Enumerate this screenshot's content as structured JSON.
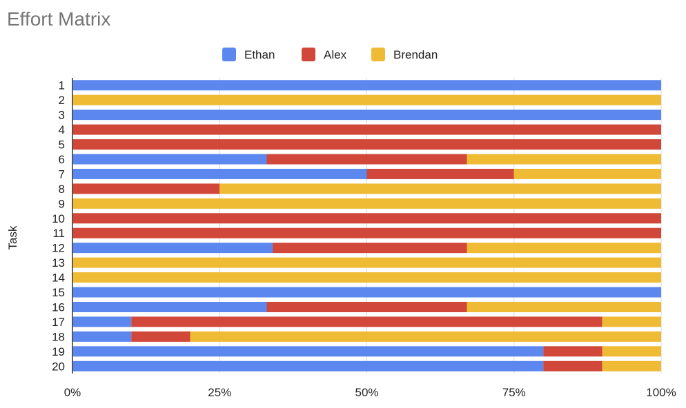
{
  "chart_data": {
    "type": "bar",
    "orientation": "horizontal",
    "stacked": "percent",
    "title": "Effort Matrix",
    "ylabel": "Task",
    "xlabel": "",
    "xlim": [
      0,
      100
    ],
    "xticks": [
      "0%",
      "25%",
      "50%",
      "75%",
      "100%"
    ],
    "categories": [
      "1",
      "2",
      "3",
      "4",
      "5",
      "6",
      "7",
      "8",
      "9",
      "10",
      "11",
      "12",
      "13",
      "14",
      "15",
      "16",
      "17",
      "18",
      "19",
      "20"
    ],
    "legend_position": "top",
    "grid": true,
    "series": [
      {
        "name": "Ethan",
        "color": "#5b87ef",
        "values": [
          100,
          0,
          100,
          0,
          0,
          33,
          50,
          0,
          0,
          0,
          0,
          34,
          0,
          0,
          100,
          33,
          10,
          10,
          80,
          80
        ]
      },
      {
        "name": "Alex",
        "color": "#d1473a",
        "values": [
          0,
          0,
          0,
          100,
          100,
          34,
          25,
          25,
          0,
          100,
          100,
          33,
          0,
          0,
          0,
          34,
          80,
          10,
          10,
          10
        ]
      },
      {
        "name": "Brendan",
        "color": "#efbb34",
        "values": [
          0,
          100,
          0,
          0,
          0,
          33,
          25,
          75,
          100,
          0,
          0,
          33,
          100,
          100,
          0,
          33,
          10,
          80,
          10,
          10
        ]
      }
    ]
  }
}
